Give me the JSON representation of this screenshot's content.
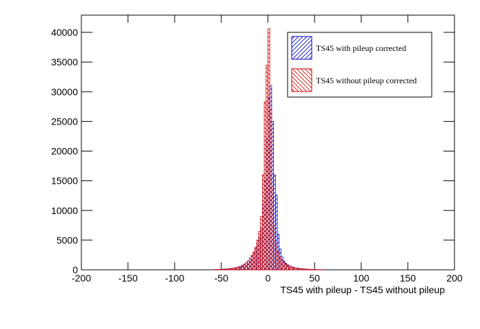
{
  "chart_data": {
    "type": "histogram",
    "xlabel": "TS45 with pileup - TS45 without pileup",
    "xlim": [
      -200,
      200
    ],
    "xticks": [
      -200,
      -150,
      -100,
      -50,
      0,
      50,
      100,
      150,
      200
    ],
    "ylim": [
      0,
      42900
    ],
    "yticks": [
      0,
      5000,
      10000,
      15000,
      20000,
      25000,
      30000,
      35000,
      40000
    ],
    "legend": "top-right",
    "bins": [
      -60,
      -58,
      -56,
      -54,
      -52,
      -50,
      -48,
      -46,
      -44,
      -42,
      -40,
      -38,
      -36,
      -34,
      -32,
      -30,
      -28,
      -26,
      -24,
      -22,
      -20,
      -18,
      -16,
      -14,
      -12,
      -10,
      -8,
      -6,
      -4,
      -2,
      0,
      2,
      4,
      6,
      8,
      10,
      12,
      14,
      16,
      18,
      20,
      22,
      24,
      26,
      28,
      30,
      32,
      34,
      36,
      38,
      40,
      42,
      44,
      46,
      48,
      50,
      52,
      54,
      56,
      58,
      60
    ],
    "series": [
      {
        "name": "TS45 with pileup corrected",
        "color": "#0000cc",
        "hatch": "/",
        "values": [
          20,
          30,
          40,
          50,
          60,
          80,
          100,
          120,
          150,
          180,
          220,
          270,
          330,
          400,
          500,
          600,
          750,
          950,
          1200,
          1500,
          1900,
          2400,
          3000,
          3600,
          4500,
          5500,
          7000,
          11000,
          15000,
          22000,
          29000,
          31000,
          25000,
          16000,
          12600,
          6000,
          3500,
          2200,
          1500,
          1100,
          850,
          680,
          540,
          430,
          350,
          280,
          230,
          190,
          160,
          130,
          110,
          90,
          75,
          60,
          50,
          40,
          35,
          30,
          25,
          20
        ]
      },
      {
        "name": "TS45 without pileup corrected",
        "color": "#cc0000",
        "hatch": "\\",
        "values": [
          20,
          30,
          40,
          50,
          60,
          80,
          100,
          120,
          150,
          180,
          220,
          270,
          330,
          400,
          500,
          600,
          750,
          950,
          1200,
          1500,
          1900,
          2400,
          3000,
          3800,
          5000,
          6500,
          9000,
          16000,
          28300,
          34500,
          40600,
          27000,
          14000,
          7500,
          4500,
          3000,
          2200,
          1700,
          1300,
          1000,
          800,
          650,
          520,
          420,
          340,
          280,
          230,
          190,
          160,
          130,
          110,
          90,
          75,
          60,
          50,
          40,
          35,
          30,
          25,
          20
        ]
      }
    ]
  }
}
